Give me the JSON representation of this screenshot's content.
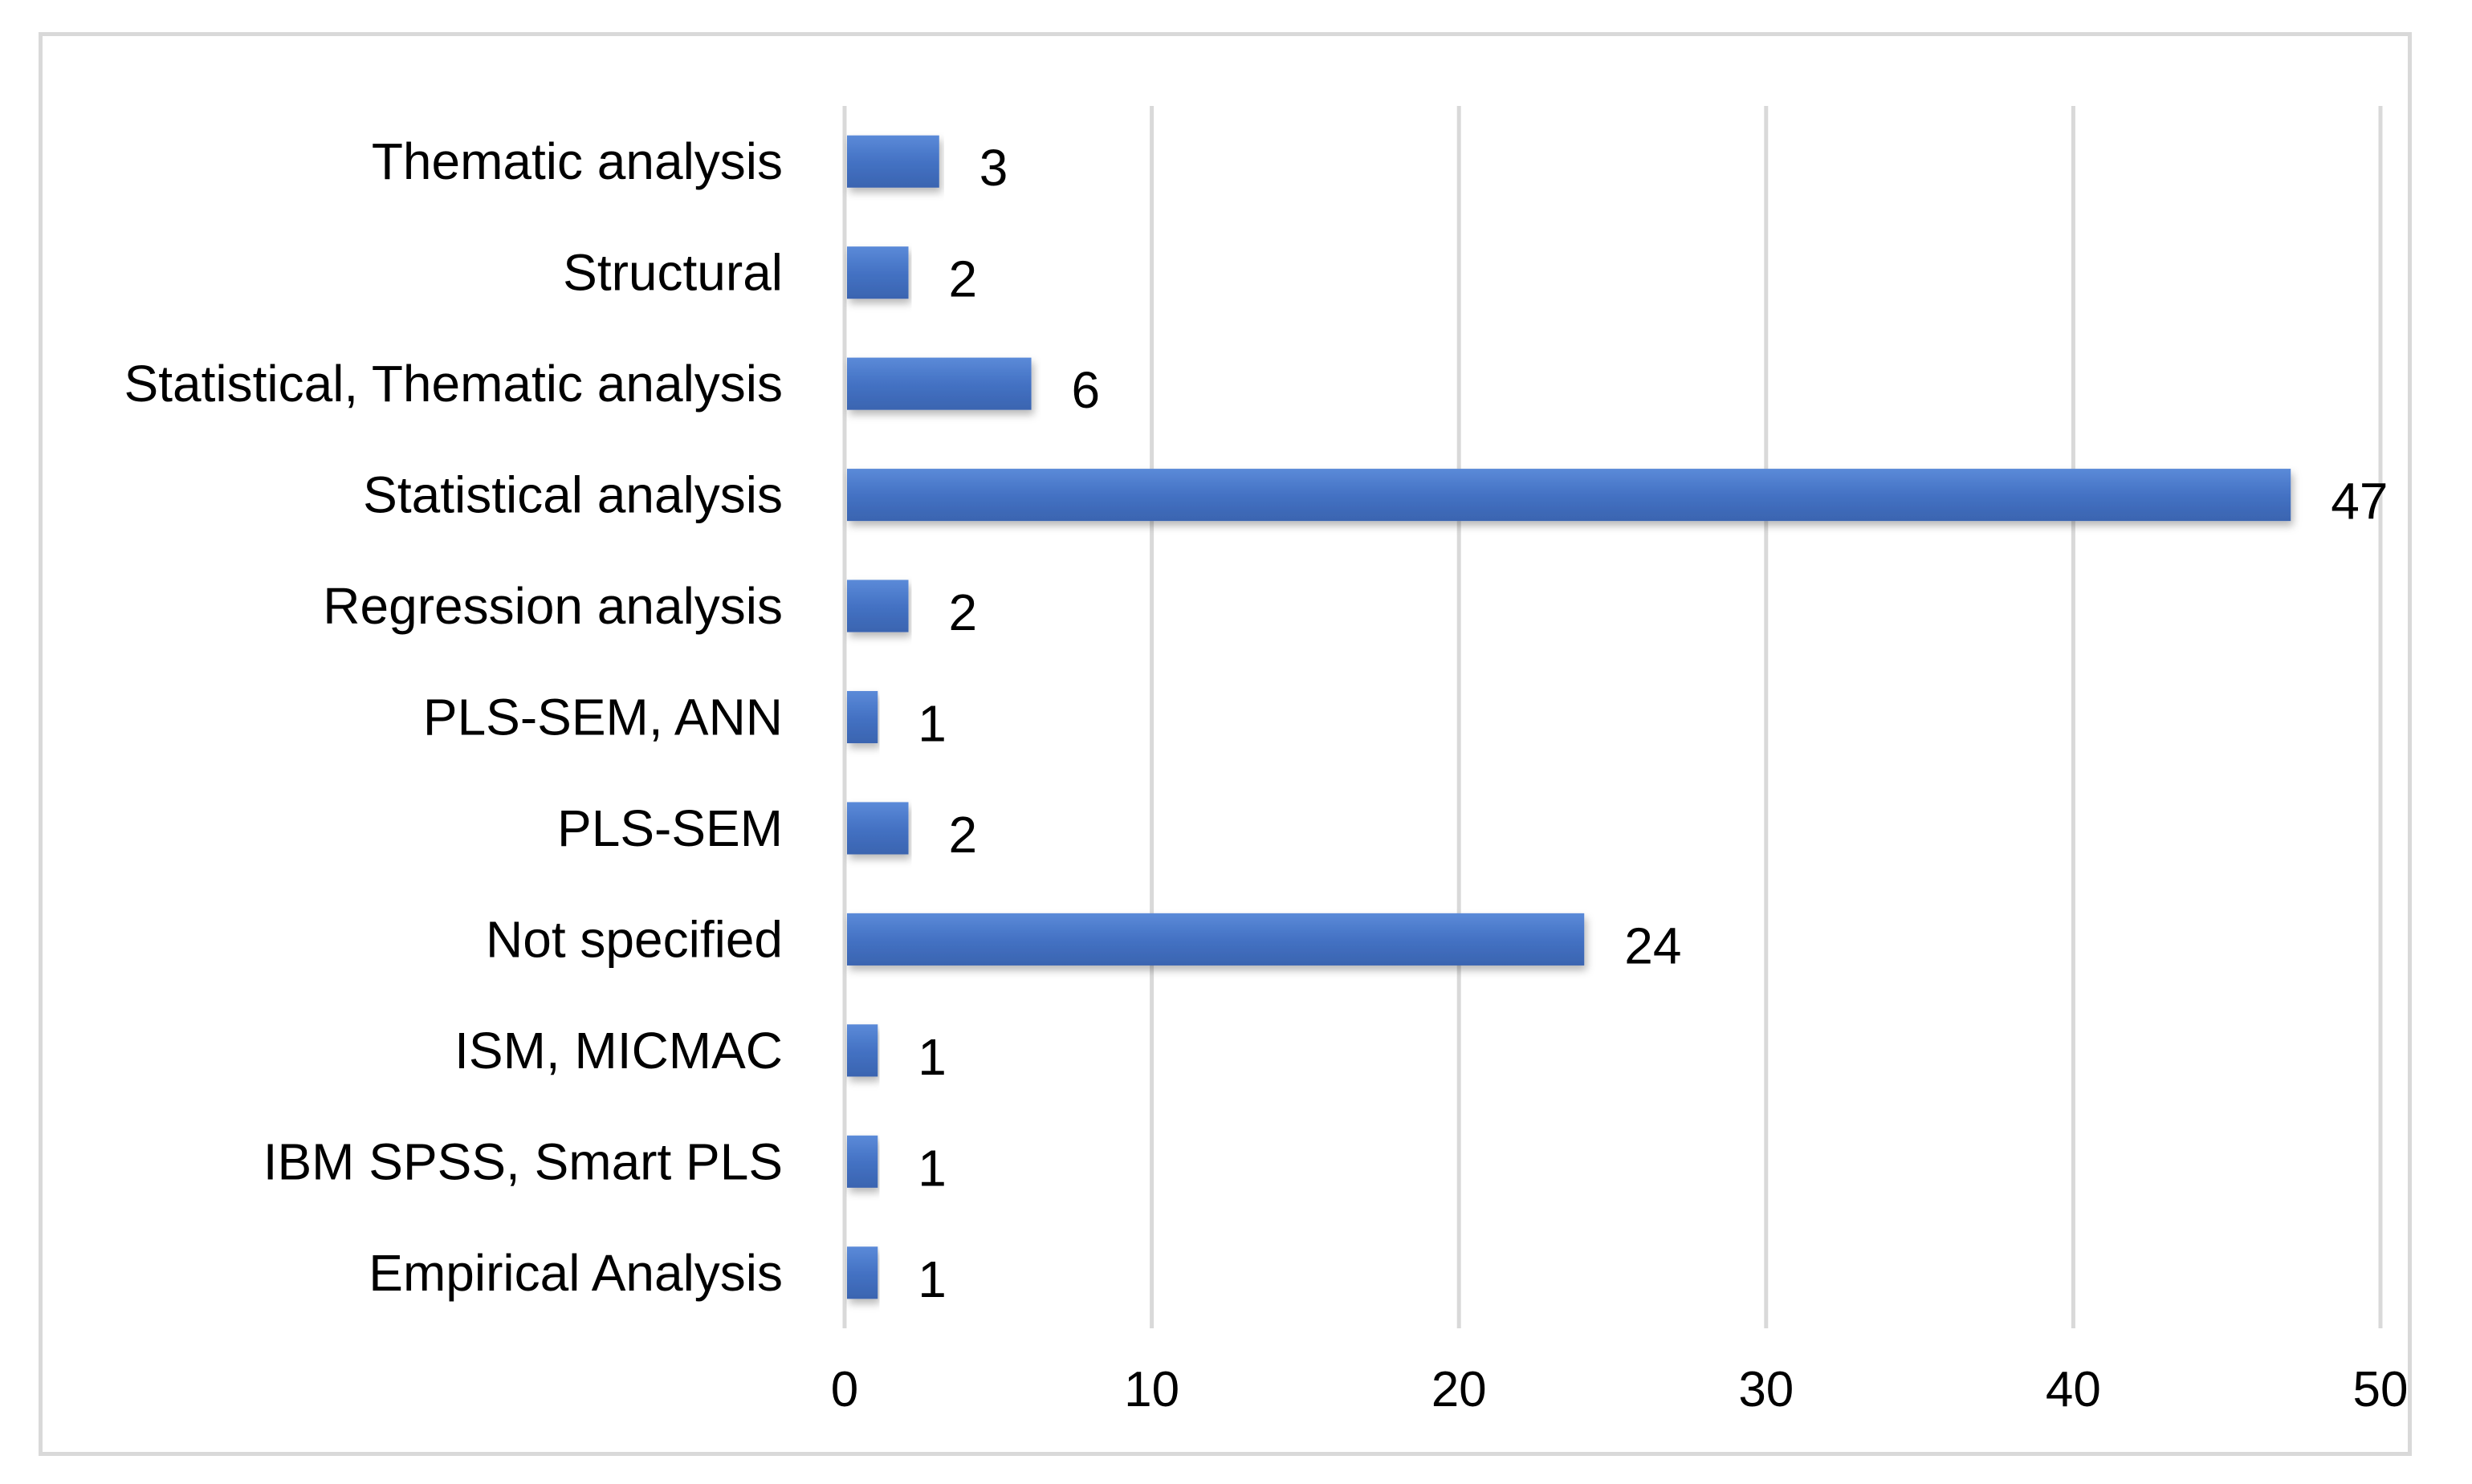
{
  "chart_data": {
    "type": "bar",
    "orientation": "horizontal",
    "title": "",
    "xlabel": "",
    "ylabel": "",
    "categories": [
      "Empirical Analysis",
      "IBM SPSS, Smart PLS",
      "ISM, MICMAC",
      "Not specified",
      "PLS-SEM",
      "PLS-SEM, ANN",
      "Regression analysis",
      "Statistical analysis",
      "Statistical, Thematic analysis",
      "Structural",
      "Thematic analysis"
    ],
    "values": [
      1,
      1,
      1,
      24,
      2,
      1,
      2,
      47,
      6,
      2,
      3
    ],
    "data_labels": [
      "1",
      "1",
      "1",
      "24",
      "2",
      "1",
      "2",
      "47",
      "6",
      "2",
      "3"
    ],
    "xlim": [
      0,
      50
    ],
    "xticks": [
      0,
      10,
      20,
      30,
      40,
      50
    ],
    "xtick_labels": [
      "0",
      "10",
      "20",
      "30",
      "40",
      "50"
    ],
    "grid": "vertical",
    "legend": "none",
    "bar_color": "#4472c4",
    "grid_color": "#d9d9d9"
  }
}
